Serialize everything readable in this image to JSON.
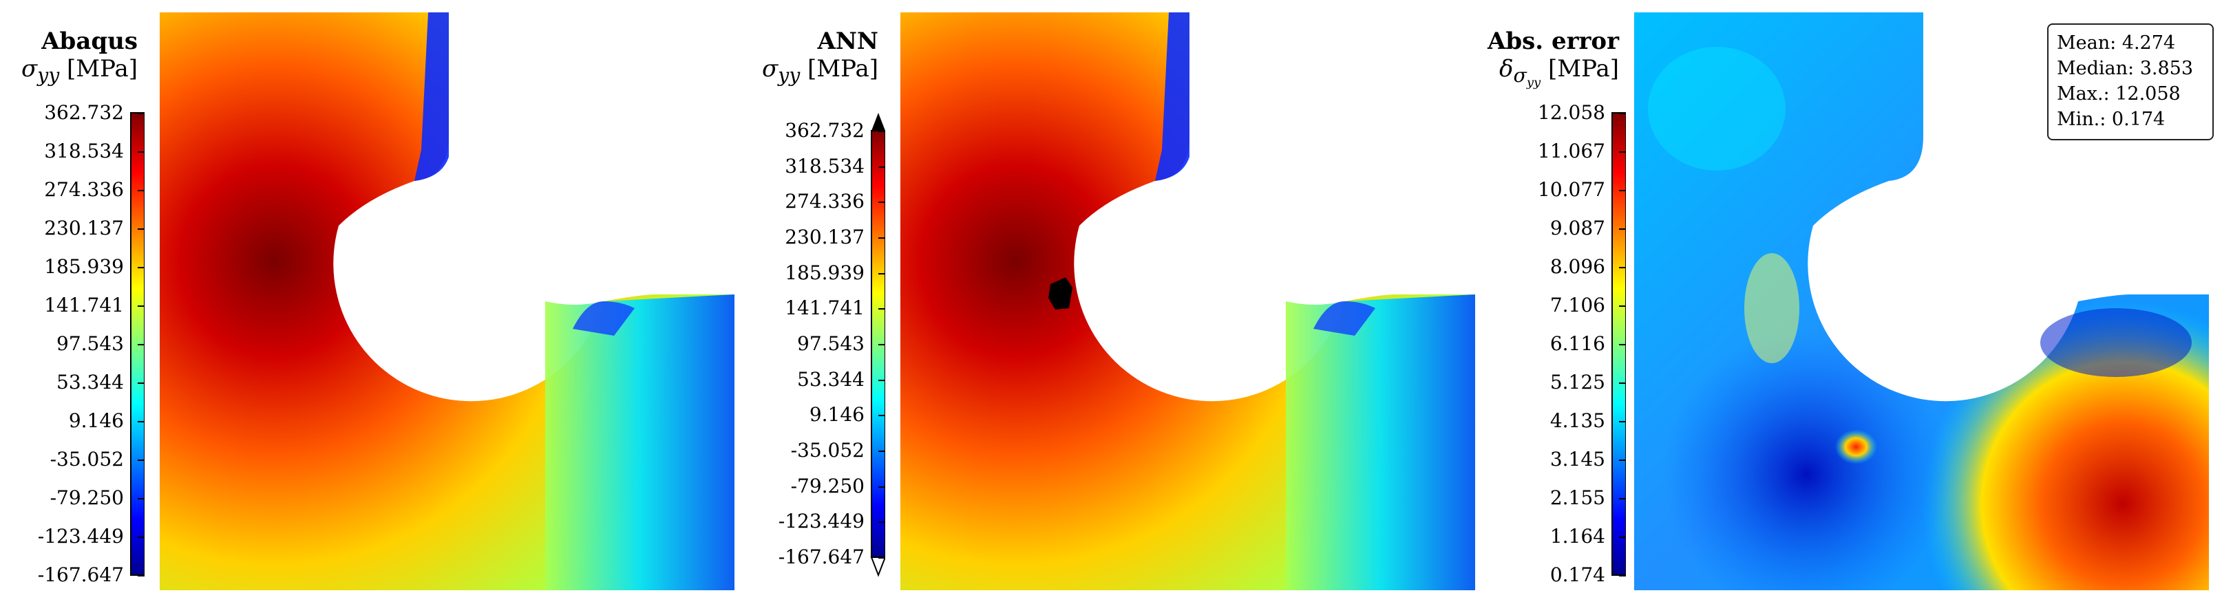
{
  "panels": [
    {
      "title": "Abaqus",
      "quantity_html": "σ<sub>yy</sub> [MPa]",
      "quantity_symbol": "σ",
      "quantity_subscript": "yy",
      "unit": "[MPa]",
      "colorbar": {
        "ticks": [
          "362.732",
          "318.534",
          "274.336",
          "230.137",
          "185.939",
          "141.741",
          "97.543",
          "53.344",
          "9.146",
          "-35.052",
          "-79.250",
          "-123.449",
          "-167.647"
        ],
        "colormap": "jet",
        "extend_arrows": false
      }
    },
    {
      "title": "ANN",
      "quantity_symbol": "σ",
      "quantity_subscript": "yy",
      "unit": "[MPa]",
      "colorbar": {
        "ticks": [
          "362.732",
          "318.534",
          "274.336",
          "230.137",
          "185.939",
          "141.741",
          "97.543",
          "53.344",
          "9.146",
          "-35.052",
          "-79.250",
          "-123.449",
          "-167.647"
        ],
        "colormap": "jet",
        "extend_arrows": true
      }
    },
    {
      "title": "Abs. error",
      "quantity_symbol": "δ",
      "quantity_subscript": "σ",
      "quantity_subsubscript": "yy",
      "unit": "[MPa]",
      "colorbar": {
        "ticks": [
          "12.058",
          "11.067",
          "10.077",
          "9.087",
          "8.096",
          "7.106",
          "6.116",
          "5.125",
          "4.135",
          "3.145",
          "2.155",
          "1.164",
          "0.174"
        ],
        "colormap": "jet",
        "extend_arrows": false
      },
      "stats": {
        "mean": "Mean: 4.274",
        "median": "Median: 3.853",
        "max": "Max.: 12.058",
        "min": "Min.: 0.174"
      }
    }
  ]
}
